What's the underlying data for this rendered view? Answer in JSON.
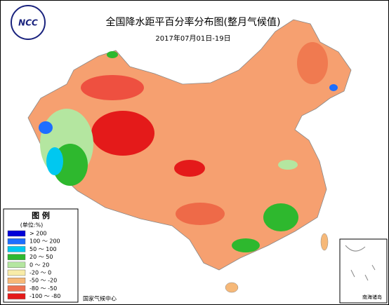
{
  "header": {
    "title": "全国降水距平百分率分布图(整月气候值)",
    "date": "2017年07月01日-19日"
  },
  "logo": {
    "text": "NCC"
  },
  "legend": {
    "title": "图 例",
    "unit": "(单位:%)",
    "items": [
      {
        "label": "> 200",
        "color": "#0000d8"
      },
      {
        "label": "100 ～ 200",
        "color": "#1e6eff"
      },
      {
        "label": "50 ～ 100",
        "color": "#00c8f0"
      },
      {
        "label": "20 ～ 50",
        "color": "#2eb82e"
      },
      {
        "label": "0 ～ 20",
        "color": "#b4e6a0"
      },
      {
        "label": "-20 ～ 0",
        "color": "#f8eca8"
      },
      {
        "label": "-50 ～ -20",
        "color": "#f6b878"
      },
      {
        "label": "-80 ～ -50",
        "color": "#ee7050"
      },
      {
        "label": "-100 ～ -80",
        "color": "#e41a1a"
      }
    ]
  },
  "footer": "国家气候中心",
  "inset": {
    "label": "南海诸岛"
  }
}
